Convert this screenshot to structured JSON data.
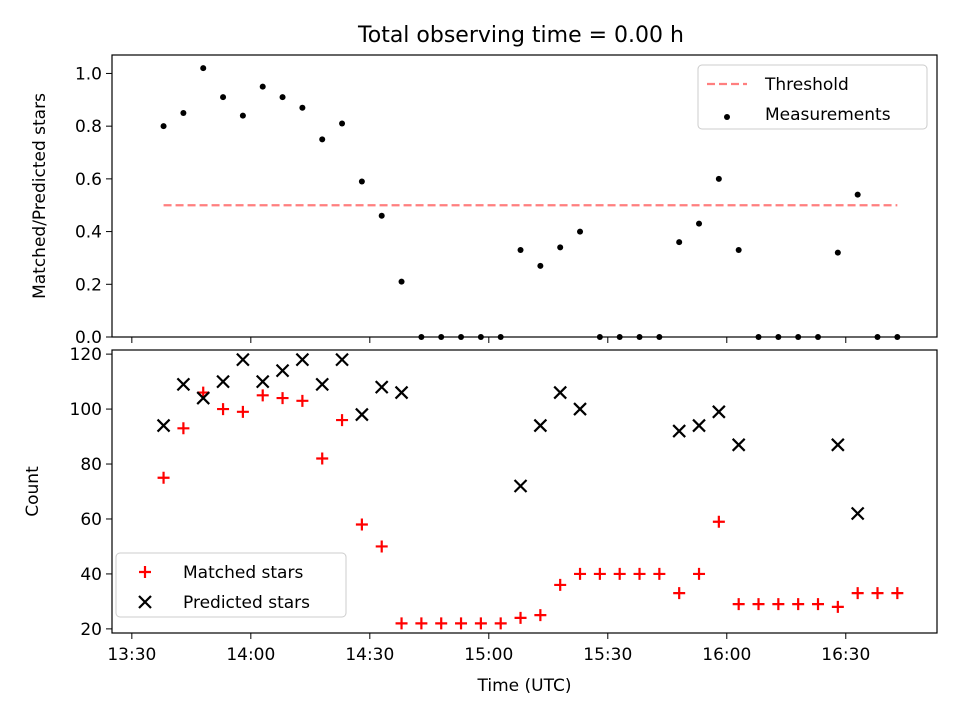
{
  "chart_data": [
    {
      "type": "scatter",
      "title": "Total observing time = 0.00 h",
      "ylabel": "Matched/Predicted stars",
      "xlabel": "",
      "xlim": [
        "13:25",
        "16:53"
      ],
      "ylim": [
        0,
        1.07
      ],
      "yticks": [
        0.0,
        0.2,
        0.4,
        0.6,
        0.8,
        1.0
      ],
      "ytick_labels": [
        "0.0",
        "0.2",
        "0.4",
        "0.6",
        "0.8",
        "1.0"
      ],
      "legend_position": "upper right",
      "series": [
        {
          "name": "Threshold",
          "kind": "dashed-line",
          "color": "#ff7f7f",
          "points": [
            [
              "13:38",
              0.5
            ],
            [
              "16:43",
              0.5
            ]
          ]
        },
        {
          "name": "Measurements",
          "kind": "dot",
          "color": "#000000",
          "points": [
            [
              "13:38",
              0.8
            ],
            [
              "13:43",
              0.85
            ],
            [
              "13:48",
              1.02
            ],
            [
              "13:53",
              0.91
            ],
            [
              "13:58",
              0.84
            ],
            [
              "14:03",
              0.95
            ],
            [
              "14:08",
              0.91
            ],
            [
              "14:13",
              0.87
            ],
            [
              "14:18",
              0.75
            ],
            [
              "14:23",
              0.81
            ],
            [
              "14:28",
              0.59
            ],
            [
              "14:33",
              0.46
            ],
            [
              "14:38",
              0.21
            ],
            [
              "14:43",
              0.0
            ],
            [
              "14:48",
              0.0
            ],
            [
              "14:53",
              0.0
            ],
            [
              "14:58",
              0.0
            ],
            [
              "15:03",
              0.0
            ],
            [
              "15:08",
              0.33
            ],
            [
              "15:13",
              0.27
            ],
            [
              "15:18",
              0.34
            ],
            [
              "15:23",
              0.4
            ],
            [
              "15:28",
              0.0
            ],
            [
              "15:33",
              0.0
            ],
            [
              "15:38",
              0.0
            ],
            [
              "15:43",
              0.0
            ],
            [
              "15:48",
              0.36
            ],
            [
              "15:53",
              0.43
            ],
            [
              "15:58",
              0.6
            ],
            [
              "16:03",
              0.33
            ],
            [
              "16:08",
              0.0
            ],
            [
              "16:13",
              0.0
            ],
            [
              "16:18",
              0.0
            ],
            [
              "16:23",
              0.0
            ],
            [
              "16:28",
              0.32
            ],
            [
              "16:33",
              0.54
            ],
            [
              "16:38",
              0.0
            ],
            [
              "16:43",
              0.0
            ]
          ]
        }
      ]
    },
    {
      "type": "scatter",
      "title": "",
      "ylabel": "Count",
      "xlabel": "Time (UTC)",
      "xlim": [
        "13:25",
        "16:53"
      ],
      "ylim": [
        18.5,
        121.5
      ],
      "yticks": [
        20,
        40,
        60,
        80,
        100,
        120
      ],
      "ytick_labels": [
        "20",
        "40",
        "60",
        "80",
        "100",
        "120"
      ],
      "xticks": [
        "13:30",
        "14:00",
        "14:30",
        "15:00",
        "15:30",
        "16:00",
        "16:30"
      ],
      "xtick_labels": [
        "13:30",
        "14:00",
        "14:30",
        "15:00",
        "15:30",
        "16:00",
        "16:30"
      ],
      "legend_position": "lower left",
      "series": [
        {
          "name": "Matched stars",
          "kind": "plus",
          "color": "#ff0000",
          "points": [
            [
              "13:38",
              75
            ],
            [
              "13:43",
              93
            ],
            [
              "13:48",
              106
            ],
            [
              "13:53",
              100
            ],
            [
              "13:58",
              99
            ],
            [
              "14:03",
              105
            ],
            [
              "14:08",
              104
            ],
            [
              "14:13",
              103
            ],
            [
              "14:18",
              82
            ],
            [
              "14:23",
              96
            ],
            [
              "14:28",
              58
            ],
            [
              "14:33",
              50
            ],
            [
              "14:38",
              22
            ],
            [
              "14:43",
              22
            ],
            [
              "14:48",
              22
            ],
            [
              "14:53",
              22
            ],
            [
              "14:58",
              22
            ],
            [
              "15:03",
              22
            ],
            [
              "15:08",
              24
            ],
            [
              "15:13",
              25
            ],
            [
              "15:18",
              36
            ],
            [
              "15:23",
              40
            ],
            [
              "15:28",
              40
            ],
            [
              "15:33",
              40
            ],
            [
              "15:38",
              40
            ],
            [
              "15:43",
              40
            ],
            [
              "15:48",
              33
            ],
            [
              "15:53",
              40
            ],
            [
              "15:58",
              59
            ],
            [
              "16:03",
              29
            ],
            [
              "16:08",
              29
            ],
            [
              "16:13",
              29
            ],
            [
              "16:18",
              29
            ],
            [
              "16:23",
              29
            ],
            [
              "16:28",
              28
            ],
            [
              "16:33",
              33
            ],
            [
              "16:38",
              33
            ],
            [
              "16:43",
              33
            ]
          ]
        },
        {
          "name": "Predicted stars",
          "kind": "x",
          "color": "#000000",
          "points": [
            [
              "13:38",
              94
            ],
            [
              "13:43",
              109
            ],
            [
              "13:48",
              104
            ],
            [
              "13:53",
              110
            ],
            [
              "13:58",
              118
            ],
            [
              "14:03",
              110
            ],
            [
              "14:08",
              114
            ],
            [
              "14:13",
              118
            ],
            [
              "14:18",
              109
            ],
            [
              "14:23",
              118
            ],
            [
              "14:28",
              98
            ],
            [
              "14:33",
              108
            ],
            [
              "14:38",
              106
            ],
            [
              "15:08",
              72
            ],
            [
              "15:13",
              94
            ],
            [
              "15:18",
              106
            ],
            [
              "15:23",
              100
            ],
            [
              "15:48",
              92
            ],
            [
              "15:53",
              94
            ],
            [
              "15:58",
              99
            ],
            [
              "16:03",
              87
            ],
            [
              "16:28",
              87
            ],
            [
              "16:33",
              62
            ]
          ]
        }
      ]
    }
  ]
}
